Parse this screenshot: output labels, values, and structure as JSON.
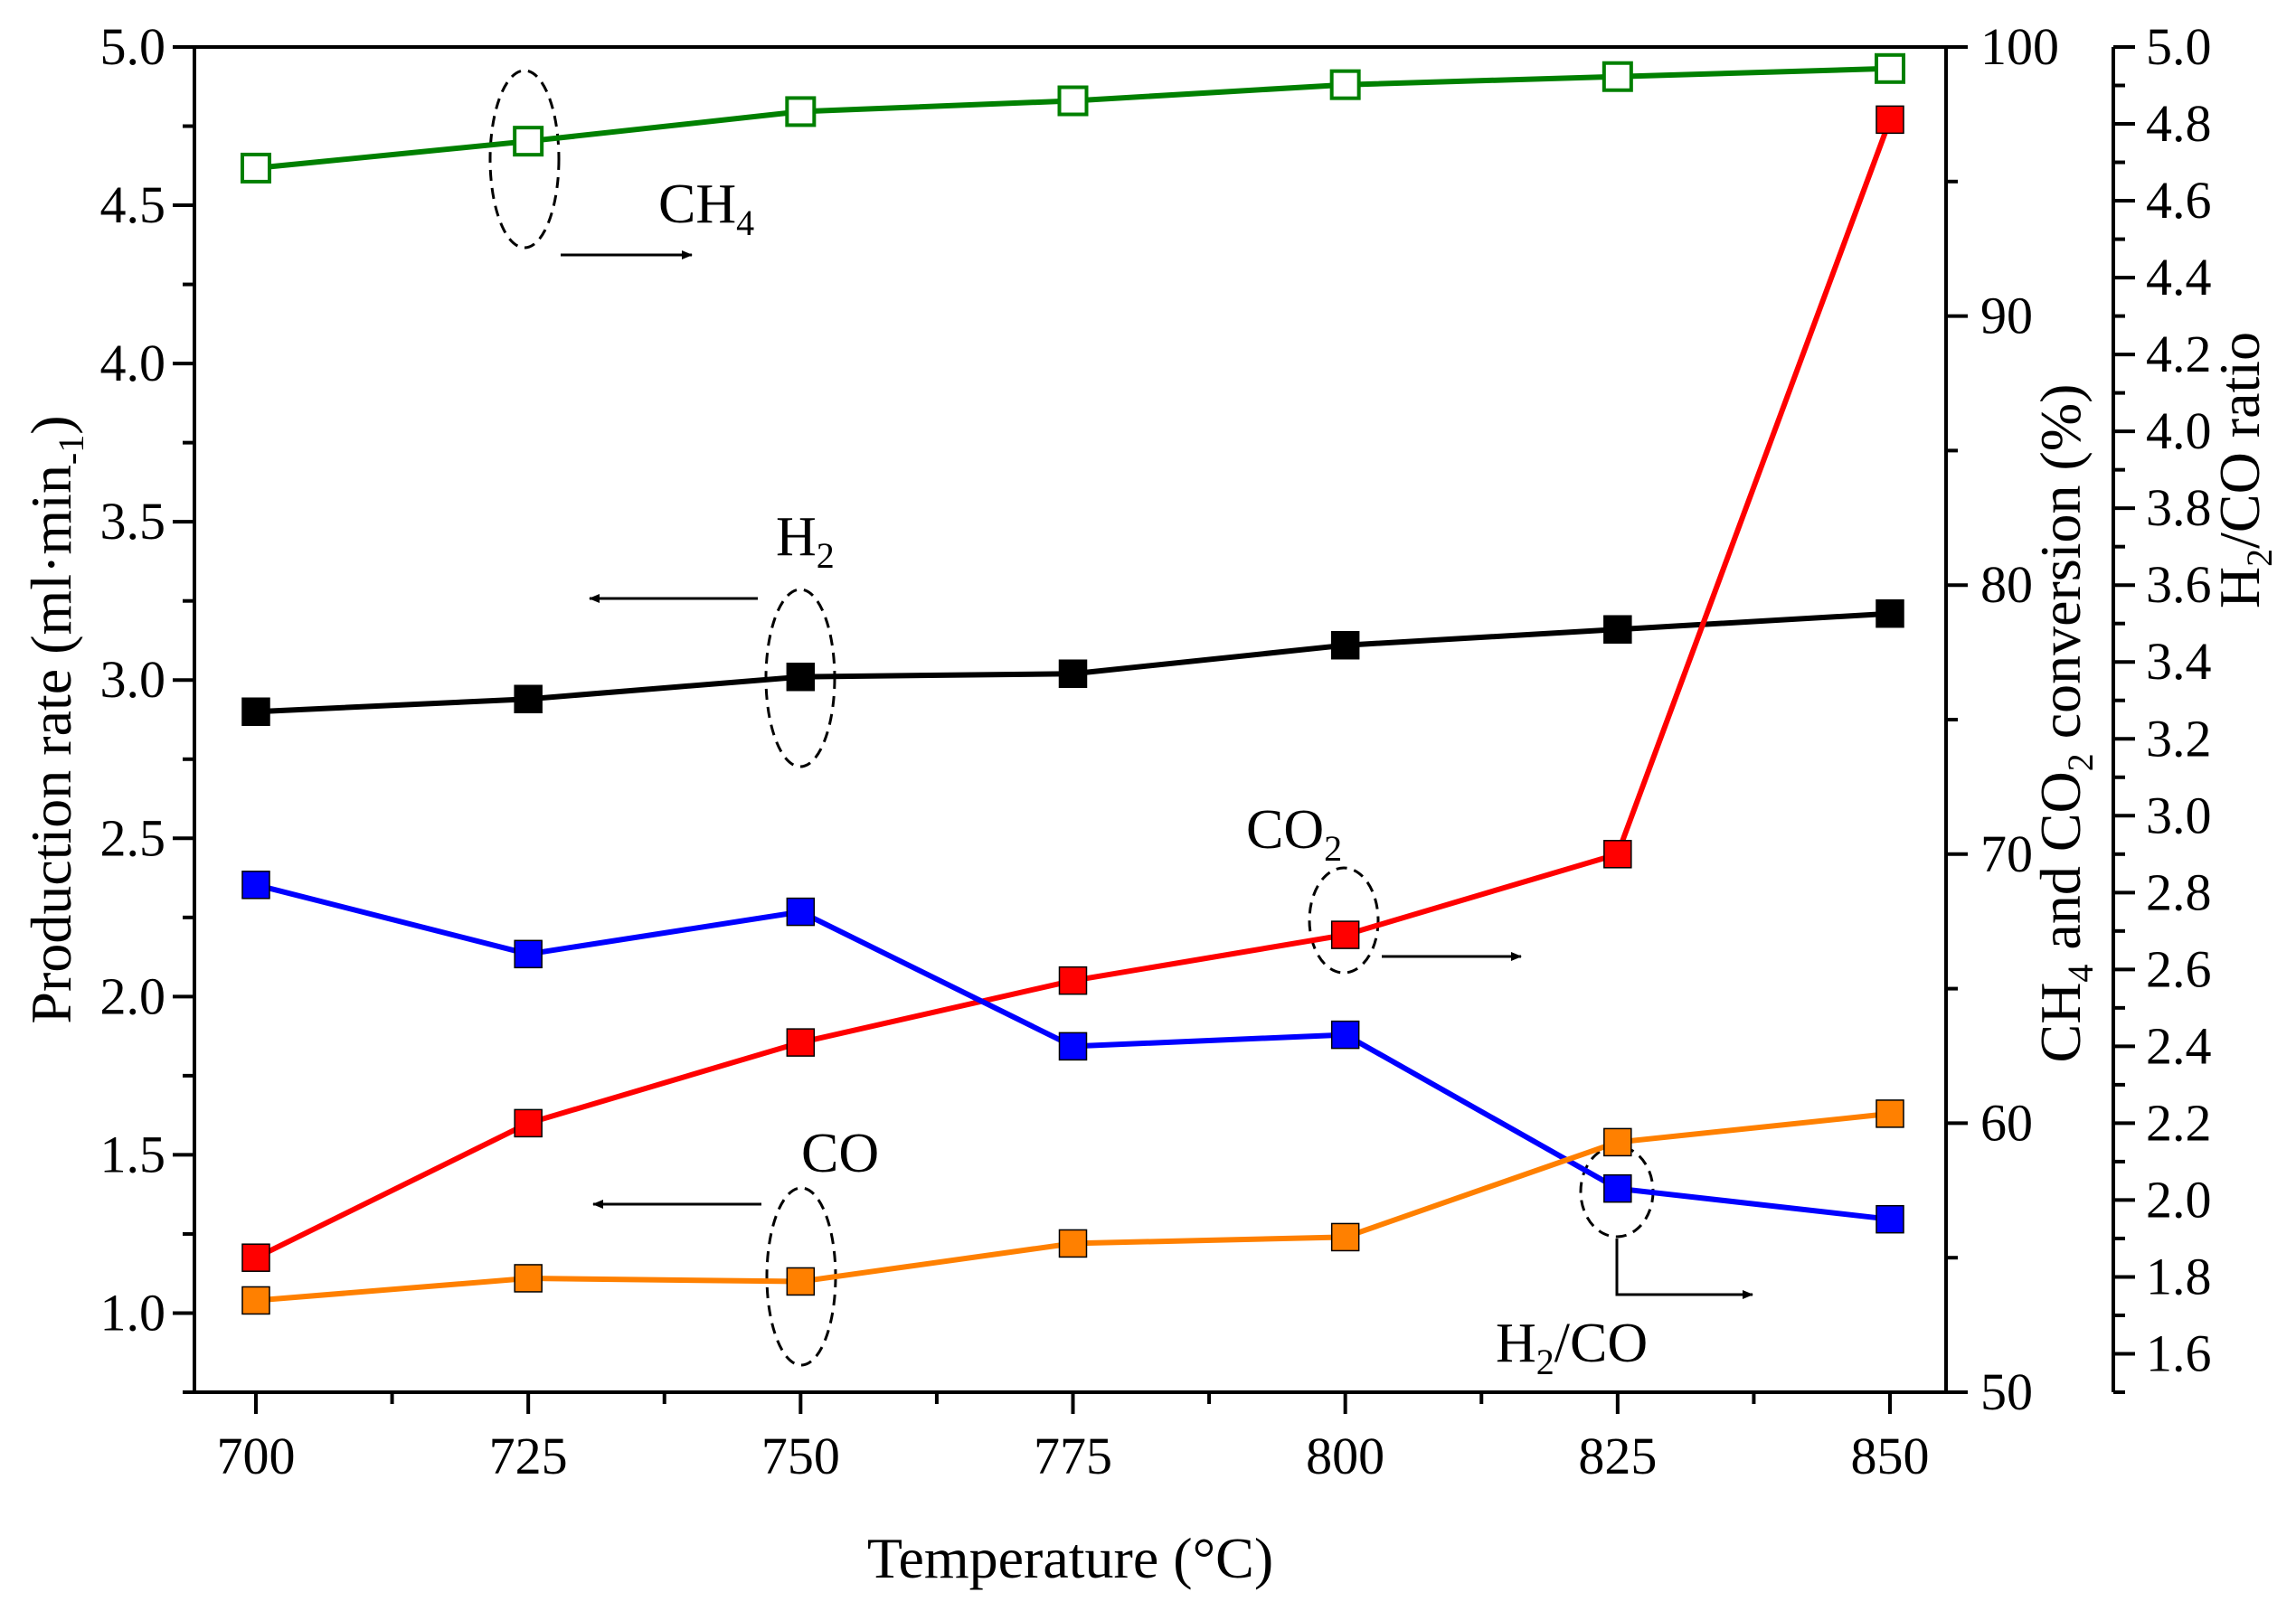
{
  "chart_data": {
    "type": "line",
    "x": [
      700,
      725,
      750,
      775,
      800,
      825,
      850
    ],
    "xlabel": "Temperature (°C)",
    "xlim": [
      695,
      850
    ],
    "x_ticks": [
      700,
      725,
      750,
      775,
      800,
      825,
      850
    ],
    "left_axis": {
      "label_parts": [
        "Production rate (ml·min",
        "-1",
        ")"
      ],
      "ylim": [
        0.75,
        5.0
      ],
      "ticks": [
        "1.0",
        "1.5",
        "2.0",
        "2.5",
        "3.0",
        "3.5",
        "4.0",
        "4.5",
        "5.0"
      ]
    },
    "right_axis_1": {
      "label_parts": [
        "CH",
        "4",
        " and CO",
        "2",
        " conversion (%)"
      ],
      "ylim": [
        50,
        100
      ],
      "ticks": [
        "50",
        "60",
        "70",
        "80",
        "90",
        "100"
      ]
    },
    "right_axis_2": {
      "label_parts": [
        "H",
        "2",
        "/CO ratio"
      ],
      "ylim": [
        1.5,
        5.0
      ],
      "ticks": [
        "1.6",
        "1.8",
        "2.0",
        "2.2",
        "2.4",
        "2.6",
        "2.8",
        "3.0",
        "3.2",
        "3.4",
        "3.6",
        "3.8",
        "4.0",
        "4.2",
        "4.4",
        "4.6",
        "4.8",
        "5.0"
      ]
    },
    "series": [
      {
        "name": "CH4 conversion",
        "axis": "right_axis_1",
        "color": "#008000",
        "marker": "hollow-square",
        "values": [
          95.5,
          96.5,
          97.6,
          98.0,
          98.6,
          98.9,
          99.2
        ]
      },
      {
        "name": "H2 production rate",
        "axis": "left_axis",
        "color": "#000000",
        "marker": "filled-square",
        "values": [
          2.9,
          2.94,
          3.01,
          3.02,
          3.11,
          3.16,
          3.21
        ]
      },
      {
        "name": "CO2 conversion",
        "axis": "right_axis_1",
        "color": "#ff0000",
        "marker": "filled-square",
        "values": [
          55.0,
          60.0,
          63.0,
          65.3,
          67.0,
          70.0,
          97.3
        ]
      },
      {
        "name": "H2/CO ratio",
        "axis": "right_axis_2",
        "color": "#0000ff",
        "marker": "filled-square",
        "values": [
          2.82,
          2.64,
          2.75,
          2.4,
          2.43,
          2.03,
          1.95
        ]
      },
      {
        "name": "CO production rate",
        "axis": "left_axis",
        "color": "#ff8000",
        "marker": "filled-square",
        "values": [
          1.04,
          1.11,
          1.1,
          1.22,
          1.24,
          1.54,
          1.63
        ]
      }
    ],
    "annotations": [
      {
        "id": "ch4",
        "parts": [
          "CH",
          "4"
        ],
        "points_to": "right_axis_1"
      },
      {
        "id": "h2",
        "parts": [
          "H",
          "2"
        ],
        "points_to": "left_axis"
      },
      {
        "id": "co2",
        "parts": [
          "CO",
          "2"
        ],
        "points_to": "right_axis_1"
      },
      {
        "id": "co",
        "parts": [
          "CO",
          ""
        ],
        "points_to": "left_axis"
      },
      {
        "id": "h2co",
        "parts": [
          "H",
          "2",
          "/CO"
        ],
        "points_to": "right_axis_2"
      }
    ]
  }
}
